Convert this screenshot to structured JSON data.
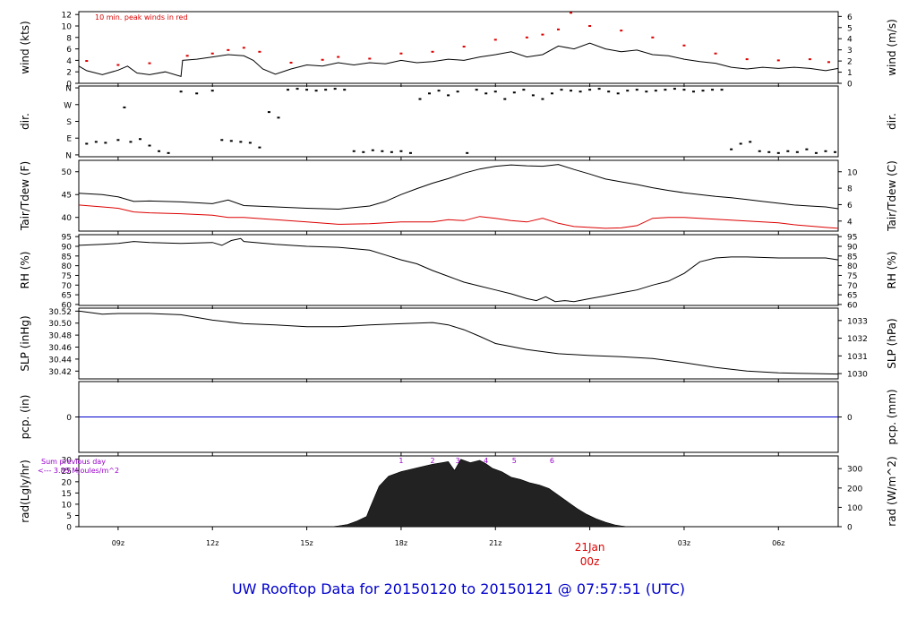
{
  "title": "UW Rooftop Data for 20150120  to  20150121 @ 07:57:51  (UTC)",
  "title_color": "#0000cc",
  "time_axis": {
    "start_hour": 7.75,
    "end_hour": 31.9,
    "ticks": [
      {
        "hour": 9,
        "label": "09z"
      },
      {
        "hour": 12,
        "label": "12z"
      },
      {
        "hour": 15,
        "label": "15z"
      },
      {
        "hour": 18,
        "label": "18z"
      },
      {
        "hour": 21,
        "label": "21z"
      },
      {
        "hour": 24,
        "label": "00z",
        "big": true
      },
      {
        "hour": 27,
        "label": "03z"
      },
      {
        "hour": 30,
        "label": "06z"
      }
    ],
    "day_label": "21Jan",
    "day_label_color": "#dd0000"
  },
  "chart_data": [
    {
      "type": "line",
      "key": "wind",
      "ylabel": "wind (kts)",
      "ylabel_right": "wind (m/s)",
      "ylim": [
        0,
        12.5
      ],
      "yticks": [
        0,
        2,
        4,
        6,
        8,
        10,
        12
      ],
      "ylim_right": [
        0,
        6.43
      ],
      "yticks_right": [
        0,
        1,
        2,
        3,
        4,
        5,
        6
      ],
      "annotation": "10 min. peak winds in red",
      "annotation_color": "#dd0000",
      "series": [
        {
          "color": "#000000",
          "x": [
            7.75,
            8.0,
            8.5,
            9.0,
            9.3,
            9.6,
            10.0,
            10.5,
            11.0,
            11.05,
            11.5,
            12.0,
            12.5,
            13.0,
            13.3,
            13.6,
            14.0,
            14.5,
            15.0,
            15.5,
            16.0,
            16.5,
            17.0,
            17.5,
            18.0,
            18.5,
            19.0,
            19.5,
            20.0,
            20.5,
            21.0,
            21.5,
            22.0,
            22.5,
            23.0,
            23.5,
            24.0,
            24.5,
            25.0,
            25.5,
            26.0,
            26.5,
            27.0,
            27.5,
            28.0,
            28.5,
            29.0,
            29.5,
            30.0,
            30.5,
            31.0,
            31.5,
            31.9
          ],
          "y": [
            3.0,
            2.2,
            1.5,
            2.3,
            3.0,
            1.8,
            1.5,
            2.0,
            1.2,
            4.0,
            4.2,
            4.6,
            5.0,
            4.8,
            4.0,
            2.5,
            1.6,
            2.5,
            3.2,
            3.0,
            3.6,
            3.2,
            3.6,
            3.4,
            4.0,
            3.6,
            3.8,
            4.2,
            4.0,
            4.6,
            5.0,
            5.5,
            4.6,
            5.0,
            6.5,
            6.0,
            7.0,
            6.0,
            5.5,
            5.8,
            5.0,
            4.8,
            4.2,
            3.8,
            3.5,
            2.8,
            2.5,
            2.8,
            2.6,
            2.8,
            2.6,
            2.2,
            2.6
          ]
        },
        {
          "color": "#dd0000",
          "x": [
            8.0,
            9.0,
            10.0,
            11.2,
            12.0,
            12.5,
            13.0,
            13.5,
            14.5,
            15.5,
            16.0,
            17.0,
            18.0,
            19.0,
            20.0,
            21.0,
            22.0,
            22.5,
            23.0,
            23.4,
            24.0,
            25.0,
            26.0,
            27.0,
            28.0,
            29.0,
            30.0,
            31.0,
            31.6
          ],
          "y": [
            3.9,
            3.2,
            3.5,
            4.8,
            5.2,
            5.8,
            6.2,
            5.5,
            3.6,
            4.1,
            4.6,
            4.3,
            5.2,
            5.5,
            6.4,
            7.6,
            8.0,
            8.5,
            9.4,
            12.3,
            10.0,
            9.2,
            8.0,
            6.6,
            5.2,
            4.2,
            4.0,
            4.2,
            3.7
          ]
        }
      ]
    },
    {
      "type": "scatter",
      "key": "dir",
      "ylabel": "dir.",
      "ylabel_right": "dir.",
      "ylim": [
        -10,
        370
      ],
      "yticks": [
        0,
        90,
        180,
        270,
        360
      ],
      "ytick_labels": [
        "N",
        "E",
        "S",
        "W",
        "N"
      ],
      "ytick_labels_right": [
        "N",
        "E",
        "S",
        "W",
        "N"
      ],
      "series": [
        {
          "color": "#000000",
          "x": [
            8.0,
            8.3,
            8.6,
            9.0,
            9.2,
            9.4,
            9.7,
            10.0,
            10.3,
            10.6,
            11.0,
            11.5,
            12.0,
            12.3,
            12.6,
            12.9,
            13.2,
            13.5,
            13.8,
            14.1,
            14.4,
            14.7,
            15.0,
            15.3,
            15.6,
            15.9,
            16.2,
            16.5,
            16.8,
            17.1,
            17.4,
            17.7,
            18.0,
            18.3,
            18.6,
            18.9,
            19.2,
            19.5,
            19.8,
            20.1,
            20.4,
            20.7,
            21.0,
            21.3,
            21.6,
            21.9,
            22.2,
            22.5,
            22.8,
            23.1,
            23.4,
            23.7,
            24.0,
            24.3,
            24.6,
            24.9,
            25.2,
            25.5,
            25.8,
            26.1,
            26.4,
            26.7,
            27.0,
            27.3,
            27.6,
            27.9,
            28.2,
            28.5,
            28.8,
            29.1,
            29.4,
            29.7,
            30.0,
            30.3,
            30.6,
            30.9,
            31.2,
            31.5,
            31.8
          ],
          "y": [
            60,
            70,
            65,
            80,
            255,
            70,
            85,
            50,
            20,
            10,
            340,
            330,
            345,
            80,
            75,
            70,
            65,
            40,
            230,
            200,
            350,
            355,
            350,
            345,
            350,
            355,
            350,
            20,
            15,
            25,
            20,
            15,
            20,
            10,
            300,
            330,
            345,
            320,
            340,
            10,
            350,
            330,
            340,
            300,
            335,
            350,
            320,
            300,
            330,
            350,
            345,
            340,
            350,
            355,
            340,
            330,
            345,
            350,
            340,
            345,
            350,
            355,
            350,
            340,
            345,
            350,
            350,
            30,
            60,
            70,
            20,
            15,
            10,
            20,
            15,
            30,
            10,
            20,
            15
          ]
        }
      ]
    },
    {
      "type": "line",
      "key": "temp",
      "ylabel": "Tair/Tdew (F)",
      "ylabel_right": "Tair/Tdew (C)",
      "ylim": [
        37,
        52.5
      ],
      "yticks": [
        40,
        45,
        50
      ],
      "ylim_right": [
        2.78,
        11.39
      ],
      "yticks_right": [
        4,
        6,
        8,
        10
      ],
      "series": [
        {
          "color": "#000000",
          "x": [
            7.75,
            8.5,
            9.0,
            9.5,
            10.0,
            11.0,
            12.0,
            12.5,
            13.0,
            14.0,
            15.0,
            16.0,
            17.0,
            17.5,
            18.0,
            18.5,
            19.0,
            19.5,
            20.0,
            20.5,
            21.0,
            21.5,
            22.0,
            22.5,
            23.0,
            23.5,
            24.0,
            24.5,
            25.0,
            25.5,
            26.0,
            26.5,
            27.0,
            27.5,
            28.0,
            28.5,
            29.0,
            29.5,
            30.0,
            30.5,
            31.0,
            31.5,
            31.9
          ],
          "y": [
            45.3,
            45.0,
            44.5,
            43.5,
            43.6,
            43.4,
            43.0,
            43.8,
            42.6,
            42.3,
            42.0,
            41.8,
            42.5,
            43.5,
            45.0,
            46.3,
            47.5,
            48.5,
            49.7,
            50.6,
            51.2,
            51.5,
            51.3,
            51.2,
            51.6,
            50.5,
            49.5,
            48.4,
            47.8,
            47.2,
            46.5,
            45.9,
            45.4,
            45.0,
            44.6,
            44.3,
            43.9,
            43.5,
            43.1,
            42.7,
            42.5,
            42.3,
            41.9
          ]
        },
        {
          "color": "#dd0000",
          "x": [
            7.75,
            8.5,
            9.0,
            9.5,
            10.0,
            11.0,
            12.0,
            12.5,
            13.0,
            14.0,
            15.0,
            16.0,
            17.0,
            18.0,
            19.0,
            19.5,
            20.0,
            20.5,
            21.0,
            21.5,
            22.0,
            22.5,
            23.0,
            23.5,
            24.0,
            24.5,
            25.0,
            25.5,
            26.0,
            26.5,
            27.0,
            27.5,
            28.0,
            28.5,
            29.0,
            29.5,
            30.0,
            30.5,
            31.0,
            31.5,
            31.9
          ],
          "y": [
            42.7,
            42.3,
            42.0,
            41.2,
            41.0,
            40.8,
            40.5,
            40.0,
            40.0,
            39.5,
            39.0,
            38.5,
            38.6,
            39.0,
            39.0,
            39.5,
            39.3,
            40.2,
            39.8,
            39.3,
            39.0,
            39.8,
            38.7,
            38.0,
            37.8,
            37.6,
            37.7,
            38.2,
            39.8,
            40.0,
            40.0,
            39.8,
            39.6,
            39.4,
            39.2,
            39.0,
            38.8,
            38.4,
            38.1,
            37.8,
            37.6
          ]
        }
      ]
    },
    {
      "type": "line",
      "key": "rh",
      "ylabel": "RH (%)",
      "ylabel_right": "RH (%)",
      "ylim": [
        59.5,
        96
      ],
      "yticks": [
        60,
        65,
        70,
        75,
        80,
        85,
        90,
        95
      ],
      "yticks_right": [
        60,
        65,
        70,
        75,
        80,
        85,
        90,
        95
      ],
      "series": [
        {
          "color": "#000000",
          "x": [
            7.75,
            8.5,
            9.0,
            9.5,
            10.0,
            11.0,
            12.0,
            12.3,
            12.6,
            12.9,
            13.0,
            14.0,
            15.0,
            16.0,
            17.0,
            17.5,
            18.0,
            18.5,
            19.0,
            19.5,
            20.0,
            20.5,
            21.0,
            21.5,
            22.0,
            22.3,
            22.6,
            22.9,
            23.2,
            23.5,
            24.0,
            24.5,
            25.0,
            25.5,
            26.0,
            26.5,
            27.0,
            27.5,
            28.0,
            28.5,
            29.0,
            30.0,
            31.0,
            31.5,
            31.9
          ],
          "y": [
            90.5,
            91.0,
            91.5,
            92.5,
            92.0,
            91.5,
            92.0,
            90.5,
            93.0,
            94.0,
            92.5,
            91.0,
            90.0,
            89.5,
            88.0,
            85.5,
            83.0,
            81.0,
            77.5,
            74.5,
            71.5,
            69.5,
            67.5,
            65.5,
            63.0,
            62.0,
            64.0,
            61.5,
            62.0,
            61.5,
            63.0,
            64.5,
            66.0,
            67.5,
            70.0,
            72.0,
            76.0,
            82.0,
            84.0,
            84.5,
            84.5,
            84.0,
            84.0,
            84.0,
            83.0
          ]
        }
      ]
    },
    {
      "type": "line",
      "key": "slp",
      "ylabel": "SLP (inHg)",
      "ylabel_right": "SLP (hPa)",
      "ylim": [
        30.407,
        30.525
      ],
      "yticks": [
        30.42,
        30.44,
        30.46,
        30.48,
        30.5,
        30.52
      ],
      "ytick_labels": [
        "30.42",
        "30.44",
        "30.46",
        "30.48",
        "30.50",
        "30.52"
      ],
      "ylim_right": [
        1029.7,
        1033.7
      ],
      "yticks_right": [
        1030,
        1031,
        1032,
        1033
      ],
      "series": [
        {
          "color": "#000000",
          "x": [
            7.75,
            8.5,
            9.0,
            10.0,
            11.0,
            12.0,
            13.0,
            14.0,
            15.0,
            16.0,
            17.0,
            18.0,
            19.0,
            19.5,
            20.0,
            20.5,
            21.0,
            22.0,
            23.0,
            24.0,
            25.0,
            26.0,
            27.0,
            28.0,
            29.0,
            30.0,
            31.0,
            31.9
          ],
          "y": [
            30.52,
            30.515,
            30.516,
            30.516,
            30.514,
            30.505,
            30.499,
            30.497,
            30.494,
            30.494,
            30.497,
            30.499,
            30.501,
            30.497,
            30.489,
            30.478,
            30.466,
            30.456,
            30.449,
            30.446,
            30.444,
            30.441,
            30.434,
            30.426,
            30.42,
            30.417,
            30.416,
            30.415
          ]
        }
      ]
    },
    {
      "type": "line",
      "key": "pcp",
      "ylabel": "pcp. (in)",
      "ylabel_right": "pcp. (mm)",
      "ylim": [
        -1,
        1
      ],
      "yticks": [
        0
      ],
      "yticks_right": [
        0
      ],
      "series": [
        {
          "color": "#0000cc",
          "x": [
            7.75,
            31.9
          ],
          "y": [
            0,
            0
          ]
        }
      ]
    },
    {
      "type": "area",
      "key": "rad",
      "ylabel": "rad(Lgly/hr)",
      "ylabel_right": "rad (W/m^2)",
      "ylim": [
        0,
        31.5
      ],
      "yticks": [
        0,
        5,
        10,
        15,
        20,
        25,
        30
      ],
      "ylim_right": [
        0,
        366
      ],
      "yticks_right": [
        0,
        100,
        200,
        300
      ],
      "annotation_line1": "Sum previous day",
      "annotation_line2": "<--- 3.85 MJoules/m^2",
      "annotation_color": "#9900cc",
      "hour_marks": [
        {
          "hour": 18.0,
          "label": "1"
        },
        {
          "hour": 19.0,
          "label": "2"
        },
        {
          "hour": 19.8,
          "label": "3"
        },
        {
          "hour": 20.7,
          "label": "4"
        },
        {
          "hour": 21.6,
          "label": "5"
        },
        {
          "hour": 22.8,
          "label": "6"
        }
      ],
      "series": [
        {
          "color": "#222222",
          "x": [
            7.75,
            15.8,
            16.0,
            16.3,
            16.6,
            16.9,
            17.0,
            17.3,
            17.6,
            18.0,
            18.3,
            18.6,
            19.0,
            19.3,
            19.5,
            19.7,
            19.9,
            20.2,
            20.5,
            20.7,
            20.9,
            21.2,
            21.5,
            21.8,
            22.1,
            22.4,
            22.7,
            23.0,
            23.3,
            23.6,
            23.9,
            24.2,
            24.5,
            24.8,
            25.0,
            25.2,
            31.9
          ],
          "y": [
            0,
            0,
            0.3,
            1.0,
            2.5,
            4.5,
            8.0,
            18.0,
            22.5,
            24.5,
            25.5,
            26.5,
            27.8,
            28.5,
            29.0,
            25.0,
            30.0,
            28.5,
            29.5,
            28.0,
            26.0,
            24.5,
            22.0,
            21.0,
            19.5,
            18.5,
            17.0,
            14.0,
            11.0,
            8.0,
            5.5,
            3.5,
            2.0,
            0.8,
            0.3,
            0,
            0
          ]
        }
      ]
    }
  ]
}
